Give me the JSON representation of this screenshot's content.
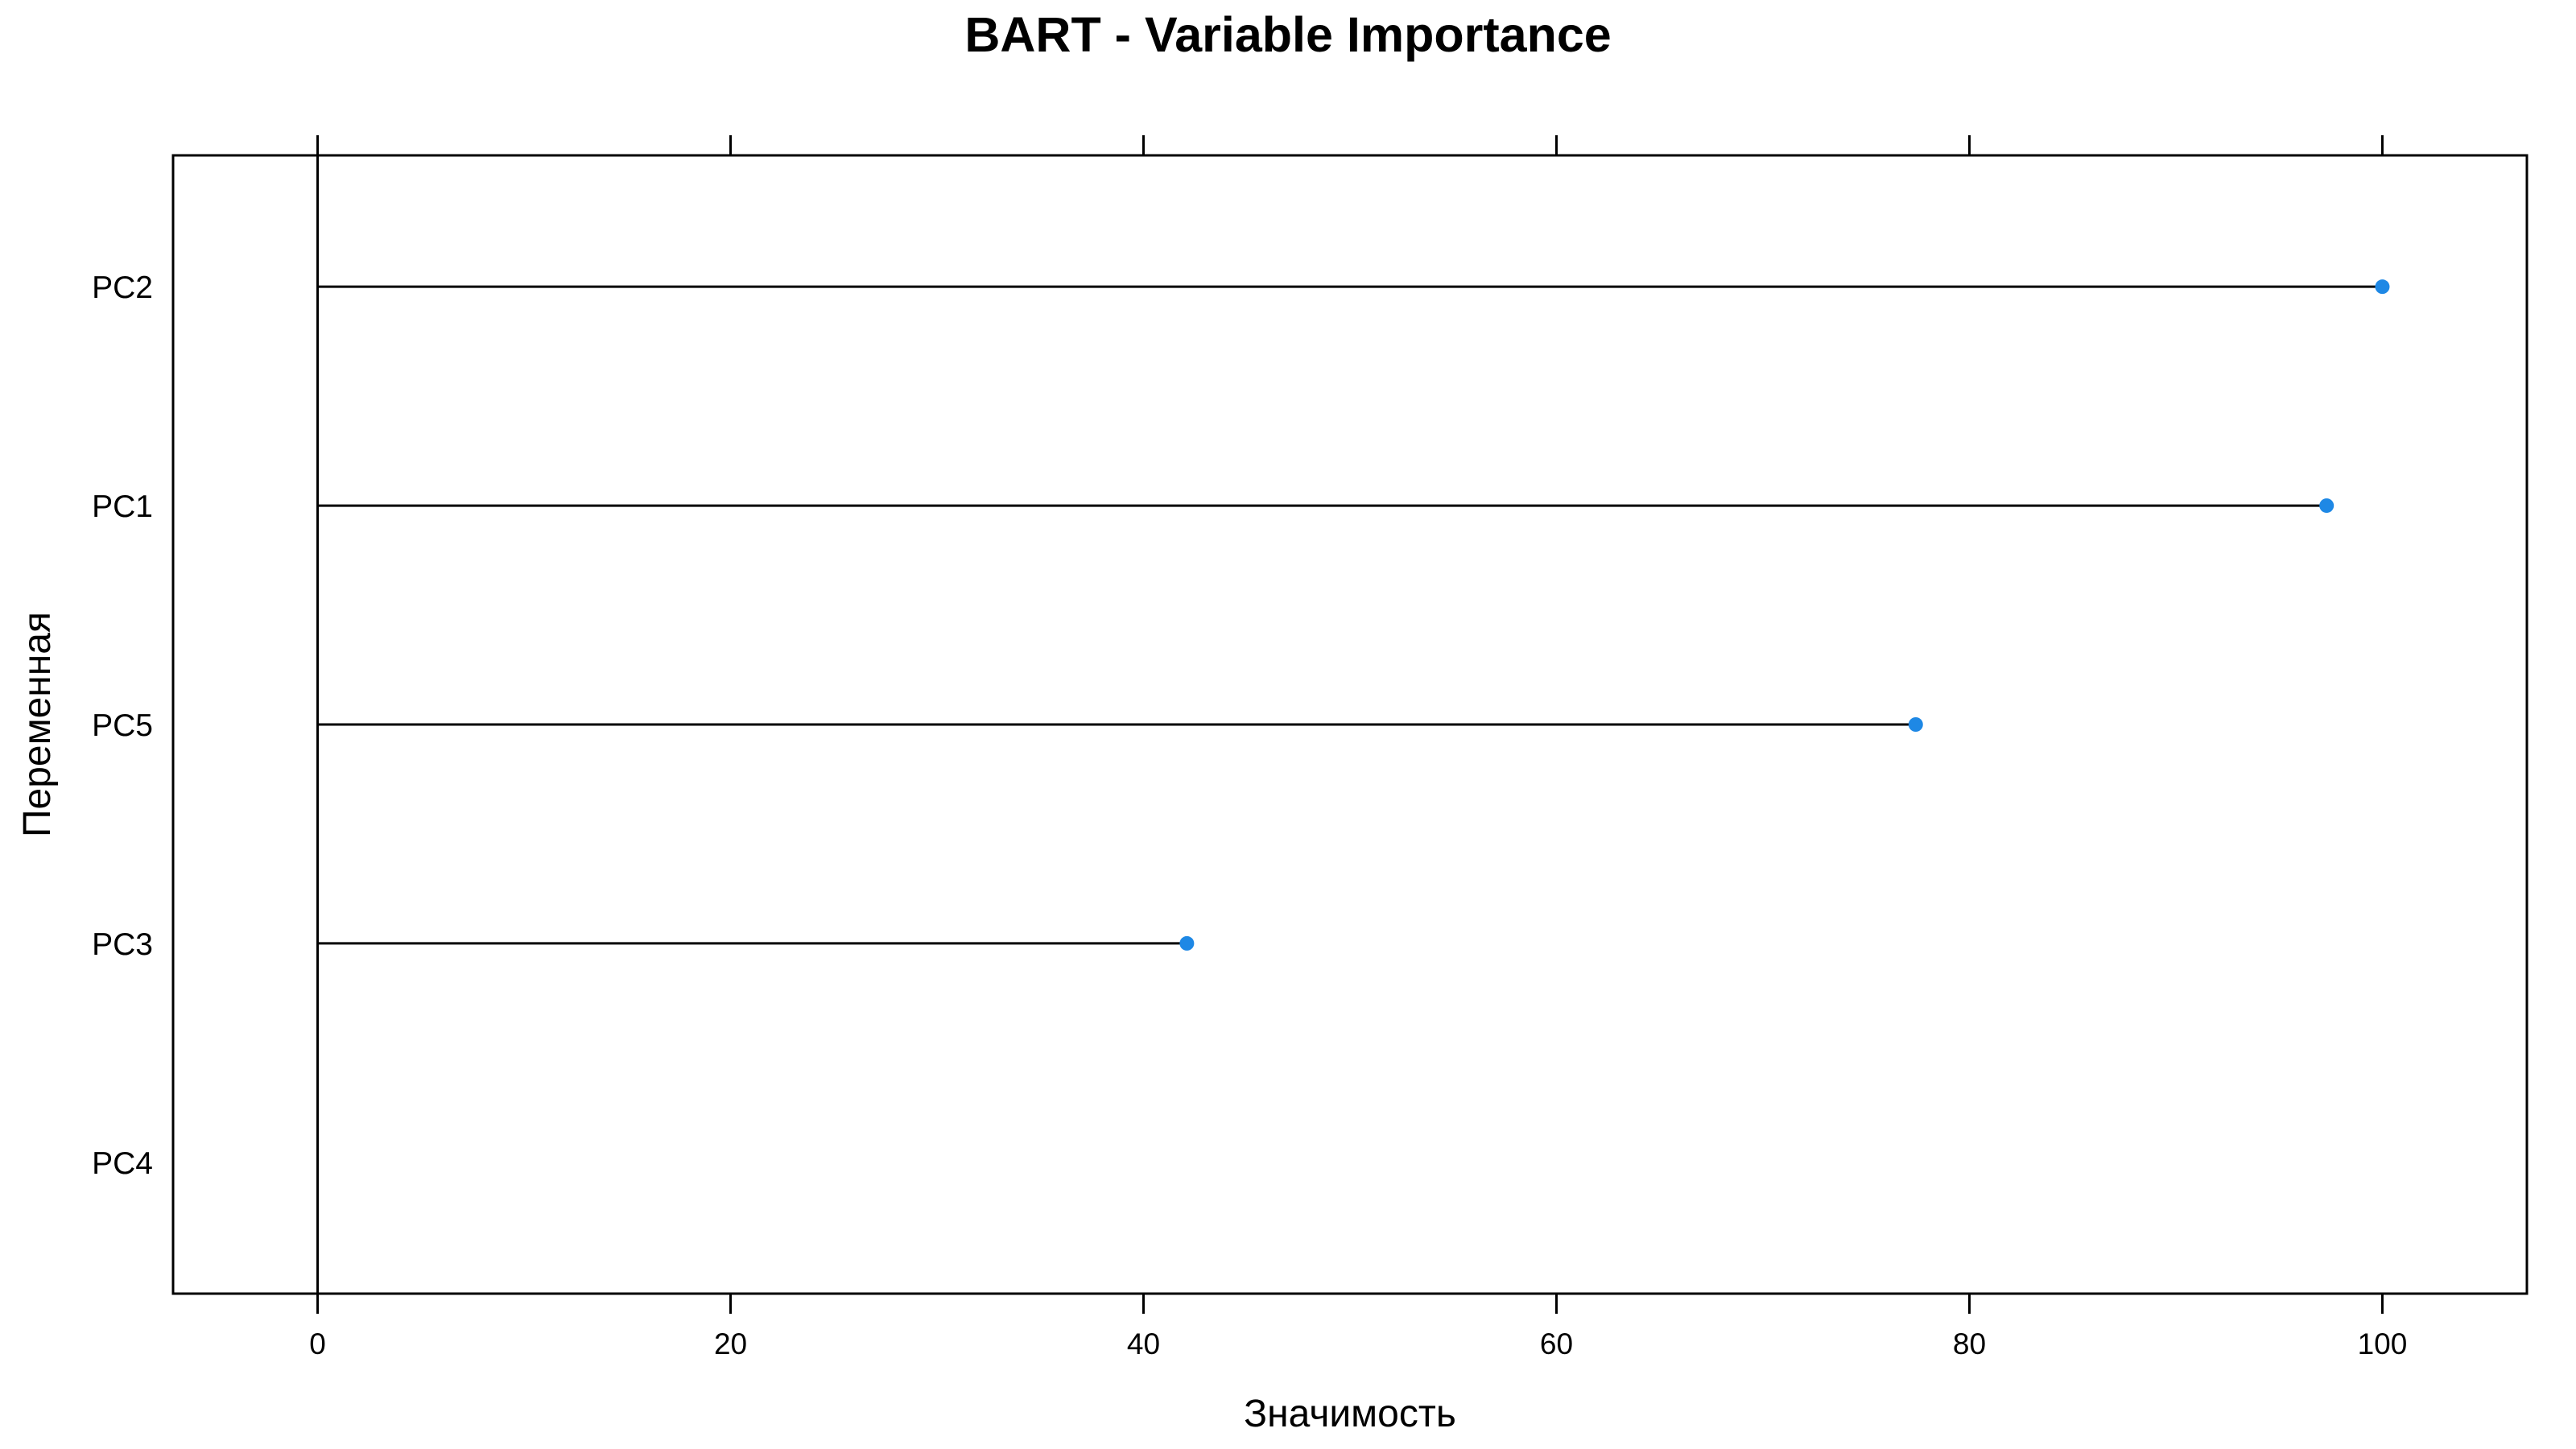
{
  "chart_data": {
    "type": "lollipop",
    "title": "BART - Variable Importance",
    "xlabel": "Значимость",
    "ylabel": "Переменная",
    "xlim": [
      -7,
      107
    ],
    "x_ticks": [
      0,
      20,
      40,
      60,
      80,
      100
    ],
    "categories": [
      "PC2",
      "PC1",
      "PC5",
      "PC3",
      "PC4"
    ],
    "values": [
      100,
      97.3,
      77.4,
      42.1,
      0
    ],
    "point_color": "#1E88E5",
    "line_color": "#000000",
    "grid": false,
    "legend": "none"
  }
}
